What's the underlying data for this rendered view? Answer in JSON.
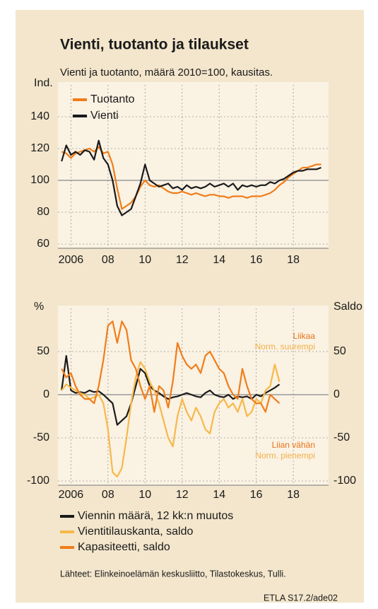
{
  "chart_data": [
    {
      "type": "line",
      "title": "Vienti, tuotanto ja tilaukset",
      "subtitle": "Vienti ja tuotanto, määrä 2010=100, kausitas.",
      "y_label": "Ind.",
      "x": [
        2005.5,
        2005.75,
        2006,
        2006.25,
        2006.5,
        2006.75,
        2007,
        2007.25,
        2007.5,
        2007.75,
        2008,
        2008.25,
        2008.5,
        2008.75,
        2009,
        2009.25,
        2009.5,
        2009.75,
        2010,
        2010.25,
        2010.5,
        2010.75,
        2011,
        2011.25,
        2011.5,
        2011.75,
        2012,
        2012.25,
        2012.5,
        2012.75,
        2013,
        2013.25,
        2013.5,
        2013.75,
        2014,
        2014.25,
        2014.5,
        2014.75,
        2015,
        2015.25,
        2015.5,
        2015.75,
        2016,
        2016.25,
        2016.5,
        2016.75,
        2017,
        2017.25,
        2017.5,
        2017.75,
        2018,
        2018.25,
        2018.5,
        2018.75,
        2019,
        2019.25,
        2019.5
      ],
      "series": [
        {
          "name": "Tuotanto",
          "color": "#f07d1a",
          "values": [
            118,
            117,
            114,
            117,
            118,
            119,
            120,
            118,
            121,
            117,
            118,
            110,
            95,
            82,
            84,
            86,
            90,
            96,
            100,
            97,
            96,
            97,
            95,
            93,
            92,
            92,
            93,
            92,
            91,
            92,
            91,
            90,
            91,
            91,
            90,
            90,
            89,
            90,
            90,
            90,
            89,
            90,
            90,
            90,
            91,
            92,
            94,
            97,
            99,
            102,
            104,
            106,
            108,
            108,
            109,
            110,
            110
          ]
        },
        {
          "name": "Vienti",
          "color": "#1a1a1a",
          "values": [
            112,
            122,
            116,
            118,
            116,
            119,
            118,
            113,
            125,
            114,
            110,
            100,
            84,
            78,
            80,
            82,
            90,
            98,
            110,
            100,
            98,
            96,
            97,
            98,
            95,
            96,
            94,
            97,
            95,
            96,
            95,
            96,
            98,
            96,
            97,
            98,
            96,
            98,
            94,
            97,
            96,
            97,
            96,
            97,
            97,
            99,
            98,
            100,
            101,
            103,
            105,
            106,
            106,
            107,
            107,
            107,
            108
          ]
        }
      ],
      "xlim": [
        2005.3,
        2019.9
      ],
      "xticks": [
        2006,
        {
          "value": 2008,
          "label": "08"
        },
        {
          "value": 2010,
          "label": "10"
        },
        {
          "value": 2012,
          "label": "12"
        },
        {
          "value": 2014,
          "label": "14"
        },
        {
          "value": 2016,
          "label": "16"
        },
        {
          "value": 2018,
          "label": "18"
        }
      ],
      "ylim": [
        60,
        160
      ],
      "yticks": [
        60,
        80,
        100,
        120,
        140
      ],
      "reference_line": 100,
      "grid": true,
      "legend": "top-left"
    },
    {
      "type": "line",
      "y_label": "%",
      "y2_label": "Saldo",
      "x": [
        2005.5,
        2005.75,
        2006,
        2006.25,
        2006.5,
        2006.75,
        2007,
        2007.25,
        2007.5,
        2007.75,
        2008,
        2008.25,
        2008.5,
        2008.75,
        2009,
        2009.25,
        2009.5,
        2009.75,
        2010,
        2010.25,
        2010.5,
        2010.75,
        2011,
        2011.25,
        2011.5,
        2011.75,
        2012,
        2012.25,
        2012.5,
        2012.75,
        2013,
        2013.25,
        2013.5,
        2013.75,
        2014,
        2014.25,
        2014.5,
        2014.75,
        2015,
        2015.25,
        2015.5,
        2015.75,
        2016,
        2016.25,
        2016.5,
        2016.75,
        2017,
        2017.25
      ],
      "series": [
        {
          "name": "Viennin määrä, 12 kk:n muutos",
          "color": "#1a1a1a",
          "values": [
            5,
            45,
            5,
            2,
            3,
            2,
            5,
            3,
            4,
            0,
            -5,
            -10,
            -35,
            -30,
            -25,
            -10,
            10,
            30,
            25,
            10,
            5,
            2,
            -2,
            -5,
            -3,
            -2,
            0,
            2,
            0,
            -2,
            -3,
            2,
            5,
            0,
            -2,
            -3,
            0,
            -5,
            -2,
            -3,
            -2,
            -5,
            0,
            -2,
            2,
            5,
            8,
            12
          ]
        },
        {
          "name": "Vientitilauskanta, saldo",
          "color": "#f7b84a",
          "axis": "y2",
          "values": [
            5,
            12,
            8,
            5,
            2,
            0,
            -5,
            -3,
            0,
            -10,
            -40,
            -90,
            -95,
            -85,
            -50,
            -10,
            20,
            38,
            30,
            15,
            5,
            -10,
            -30,
            -50,
            -60,
            -25,
            -5,
            -20,
            -30,
            -15,
            -25,
            -40,
            -45,
            -20,
            -10,
            -5,
            -15,
            -10,
            -20,
            -5,
            -25,
            -20,
            -5,
            -10,
            5,
            10,
            35,
            15
          ]
        },
        {
          "name": "Kapasiteetti, saldo",
          "color": "#f07d1a",
          "axis": "y2",
          "values": [
            30,
            20,
            25,
            10,
            0,
            -5,
            -5,
            -10,
            10,
            40,
            80,
            85,
            60,
            85,
            75,
            40,
            30,
            10,
            -5,
            10,
            -20,
            10,
            5,
            -15,
            15,
            60,
            45,
            35,
            30,
            35,
            25,
            45,
            50,
            40,
            30,
            25,
            10,
            0,
            -5,
            30,
            10,
            -5,
            -10,
            -10,
            -20,
            0,
            -5,
            -10
          ]
        }
      ],
      "annotations": [
        "Liikaa",
        "Norm. suurempi",
        "Liian vähän",
        "Norm. pienempi"
      ],
      "xlim": [
        2005.3,
        2019.9
      ],
      "xticks": [
        2006,
        {
          "value": 2008,
          "label": "08"
        },
        {
          "value": 2010,
          "label": "10"
        },
        {
          "value": 2012,
          "label": "12"
        },
        {
          "value": 2014,
          "label": "14"
        },
        {
          "value": 2016,
          "label": "16"
        },
        {
          "value": 2018,
          "label": "18"
        }
      ],
      "ylim": [
        -100,
        100
      ],
      "yticks": [
        -100,
        -50,
        0,
        50
      ],
      "y2lim": [
        -100,
        100
      ],
      "y2ticks": [
        -100,
        -50,
        0,
        50
      ],
      "reference_line": 0,
      "grid": true,
      "legend": "bottom"
    }
  ],
  "source": "Lähteet:  Elinkeinoelämän keskusliitto, Tilastokeskus, Tulli.",
  "credit": "ETLA S17.2/ade02"
}
